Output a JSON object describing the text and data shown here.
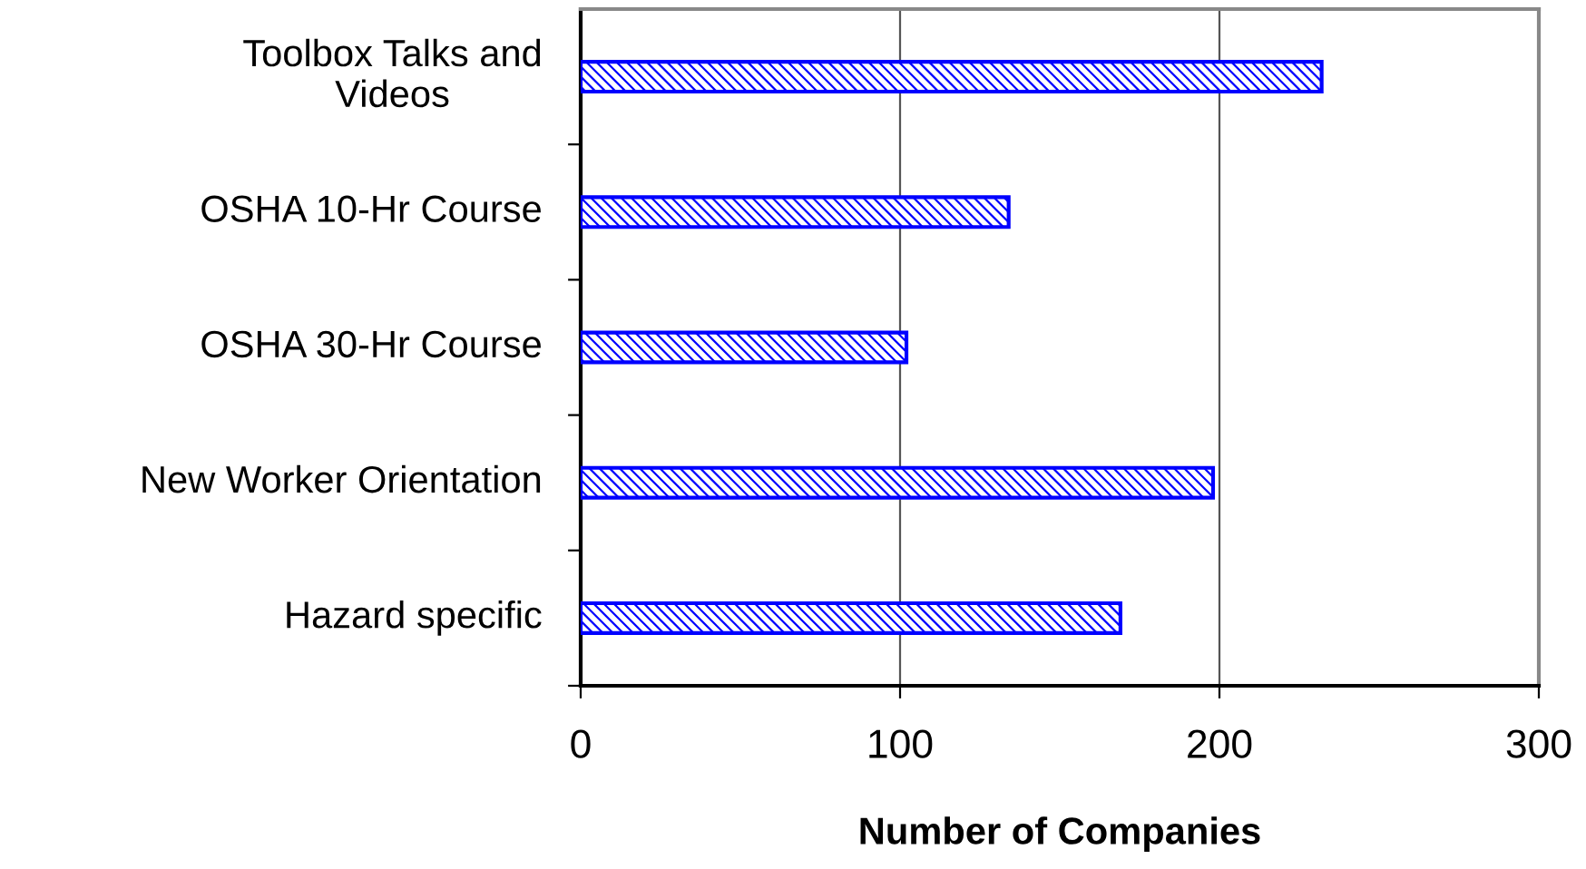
{
  "chart_data": {
    "type": "bar",
    "orientation": "horizontal",
    "categories": [
      "Toolbox Talks and\nVideos",
      "OSHA 10-Hr Course",
      "OSHA 30-Hr Course",
      "New Worker Orientation",
      "Hazard specific"
    ],
    "values": [
      232,
      134,
      102,
      198,
      169
    ],
    "color": "#0000ff",
    "xlabel": "Number of Companies",
    "xlim": [
      0,
      300
    ],
    "xticks": [
      0,
      100,
      200,
      300
    ],
    "grid": "x",
    "legend": false
  }
}
